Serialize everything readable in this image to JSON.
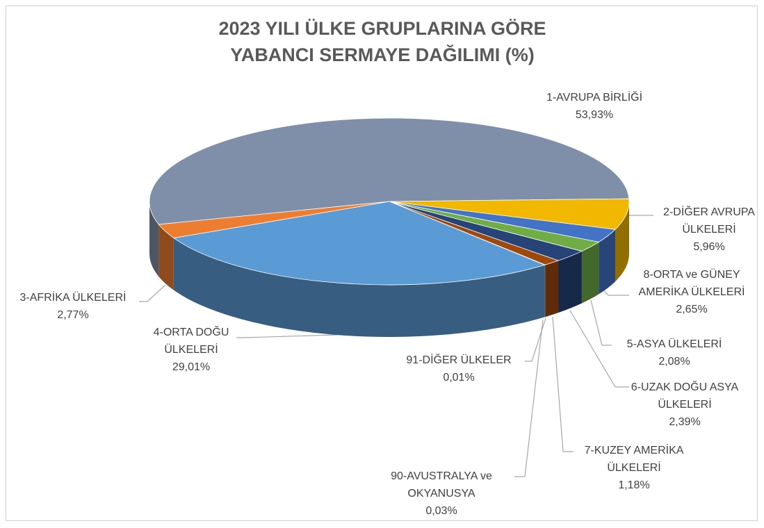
{
  "chart_data": {
    "type": "pie3d",
    "title": "2023 YILI ÜLKE GRUPLARINA GÖRE YABANCI SERMAYE DAĞILIMI (%)",
    "categories": [
      "1-AVRUPA BİRLİĞİ",
      "2-DİĞER AVRUPA ÜLKELERİ",
      "8-ORTA ve GÜNEY AMERİKA ÜLKELERİ",
      "5-ASYA ÜLKELERİ",
      "6-UZAK DOĞU ASYA ÜLKELERİ",
      "7-KUZEY AMERİKA ÜLKELERİ",
      "90-AVUSTRALYA ve OKYANUSYA",
      "91-DİĞER ÜLKELER",
      "4-ORTA DOĞU ÜLKELERİ",
      "3-AFRİKA ÜLKELERİ"
    ],
    "values": [
      53.93,
      5.96,
      2.65,
      2.08,
      2.39,
      1.18,
      0.03,
      0.01,
      29.01,
      2.77
    ],
    "value_labels": [
      "53,93%",
      "5,96%",
      "2,65%",
      "2,08%",
      "2,39%",
      "1,18%",
      "0,03%",
      "0,01%",
      "29,01%",
      "2,77%"
    ],
    "colors": [
      "#7f8fa9",
      "#f2b800",
      "#4472c4",
      "#70ad47",
      "#264478",
      "#9e480e",
      "#636363",
      "#997300",
      "#5b9bd5",
      "#ed7d31"
    ]
  }
}
